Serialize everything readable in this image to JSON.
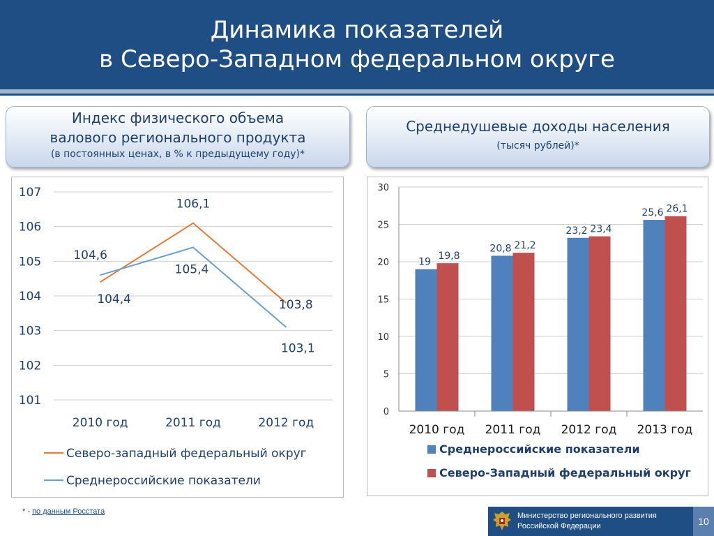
{
  "title": {
    "line1": "Динамика показателей",
    "line2": "в Северо-Западном федеральном округе"
  },
  "left_panel": {
    "line1": "Индекс физического объема",
    "line2": "валового регионального продукта",
    "sub": "(в постоянных ценах, в % к предыдущему году)*"
  },
  "right_panel": {
    "line1": "Среднедушевые доходы населения",
    "sub": "(тысяч рублей)*"
  },
  "chart_data": [
    {
      "type": "line",
      "categories": [
        "2010 год",
        "2011 год",
        "2012 год"
      ],
      "series": [
        {
          "name": "Северо-западный федеральный округ",
          "color": "#e07b39",
          "values": [
            104.4,
            106.1,
            103.8
          ],
          "labels": [
            "104,4",
            "106,1",
            "103,8"
          ]
        },
        {
          "name": "Среднероссийские показатели",
          "color": "#6a9fc9",
          "values": [
            104.6,
            105.4,
            103.1
          ],
          "labels": [
            "104,6",
            "105,4",
            "103,1"
          ]
        }
      ],
      "ylim": [
        101,
        107
      ],
      "yticks": [
        "101",
        "102",
        "103",
        "104",
        "105",
        "106",
        "107"
      ],
      "grid": true,
      "legend": "bottom"
    },
    {
      "type": "bar",
      "categories": [
        "2010 год",
        "2011 год",
        "2012 год",
        "2013 год"
      ],
      "series": [
        {
          "name": "Среднероссийские показатели",
          "color": "#4f81bd",
          "values": [
            19,
            20.8,
            23.2,
            25.6
          ],
          "labels": [
            "19",
            "20,8",
            "23,2",
            "25,6"
          ]
        },
        {
          "name": "Северо-Западный федеральный округ",
          "color": "#c0504d",
          "values": [
            19.8,
            21.2,
            23.4,
            26.1
          ],
          "labels": [
            "19,8",
            "21,2",
            "23,4",
            "26,1"
          ]
        }
      ],
      "ylim": [
        0,
        30
      ],
      "yticks": [
        "0",
        "5",
        "10",
        "15",
        "20",
        "25",
        "30"
      ],
      "grid": true,
      "legend": "bottom"
    }
  ],
  "footnote": {
    "prefix": "* - ",
    "link": "по данным Росстата"
  },
  "footer": {
    "ministry_line1": "Министерство регионального развития",
    "ministry_line2": "Российской Федерации",
    "page_number": "10"
  }
}
